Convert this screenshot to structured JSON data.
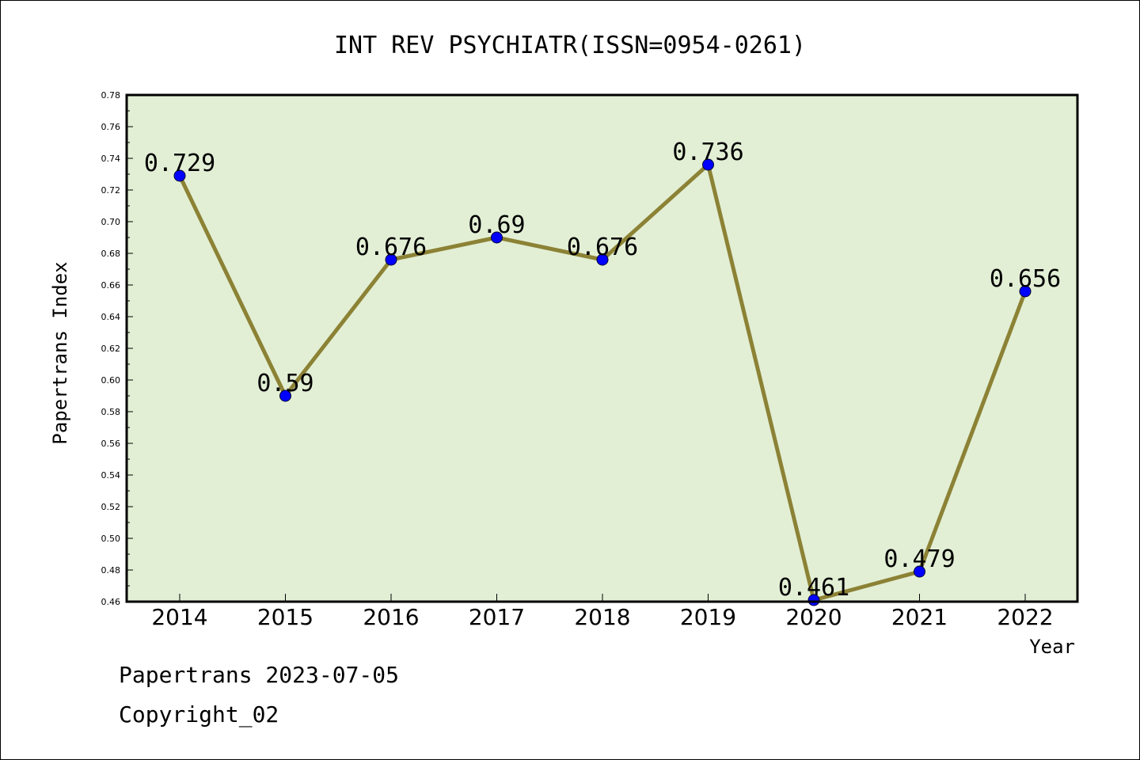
{
  "chart_data": {
    "type": "line",
    "title": "INT REV PSYCHIATR(ISSN=0954-0261)",
    "xlabel": "Year",
    "ylabel": "Papertrans Index",
    "categories": [
      "2014",
      "2015",
      "2016",
      "2017",
      "2018",
      "2019",
      "2020",
      "2021",
      "2022"
    ],
    "values": [
      0.729,
      0.59,
      0.676,
      0.69,
      0.676,
      0.736,
      0.461,
      0.479,
      0.656
    ],
    "data_labels": [
      "0.729",
      "0.59",
      "0.676",
      "0.69",
      "0.676",
      "0.736",
      "0.461",
      "0.479",
      "0.656"
    ],
    "ylim": [
      0.46,
      0.78
    ],
    "yticks": [
      "0.46",
      "0.48",
      "0.50",
      "0.52",
      "0.54",
      "0.56",
      "0.58",
      "0.60",
      "0.62",
      "0.64",
      "0.66",
      "0.68",
      "0.70",
      "0.72",
      "0.74",
      "0.76",
      "0.78"
    ],
    "grid": false,
    "legend": "none",
    "colors": {
      "line": "#8c8235",
      "marker": "#0000ff",
      "plot_background": "#e2efd5"
    }
  },
  "footer": {
    "date_line": "Papertrans 2023-07-05",
    "copyright": "Copyright_02"
  }
}
